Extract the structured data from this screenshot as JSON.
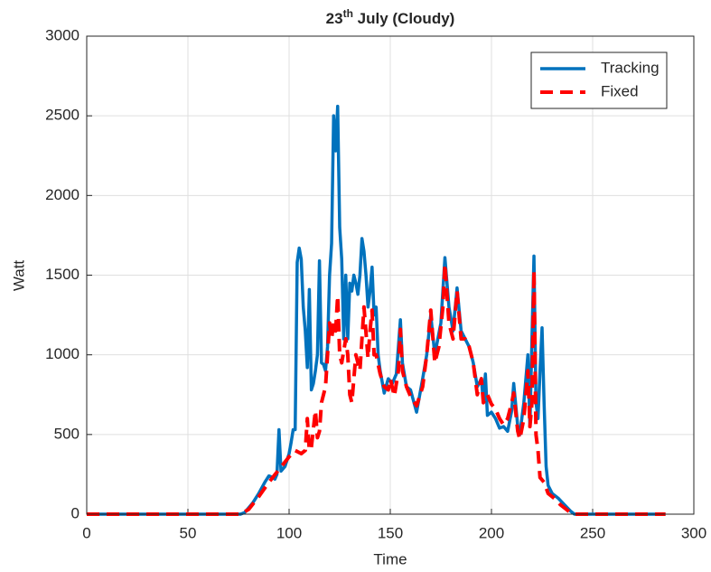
{
  "chart_data": {
    "type": "line",
    "title": {
      "main": "23",
      "sup": "th",
      "rest": " July (Cloudy)"
    },
    "xlabel": "Time",
    "ylabel": "Watt",
    "xlim": [
      0,
      300
    ],
    "ylim": [
      0,
      3000
    ],
    "xticks": [
      0,
      50,
      100,
      150,
      200,
      250,
      300
    ],
    "yticks": [
      0,
      500,
      1000,
      1500,
      2000,
      2500,
      3000
    ],
    "grid": true,
    "legend": "northeast",
    "series": [
      {
        "name": "Tracking",
        "color": "#0072bd",
        "style": "solid",
        "x": [
          0,
          76,
          78,
          80,
          82,
          85,
          88,
          90,
          92,
          93,
          94,
          95,
          96,
          98,
          100,
          101,
          102,
          103,
          104,
          105,
          106,
          107,
          108,
          109,
          110,
          111,
          112,
          113,
          114,
          115,
          116,
          117,
          118,
          119,
          120,
          121,
          122,
          123,
          124,
          125,
          126,
          127,
          128,
          129,
          130,
          131,
          132,
          133,
          134,
          135,
          136,
          137,
          138,
          139,
          140,
          141,
          142,
          143,
          144,
          145,
          147,
          149,
          151,
          153,
          155,
          156,
          158,
          160,
          163,
          166,
          168,
          170,
          172,
          175,
          177,
          179,
          181,
          183,
          185,
          187,
          189,
          191,
          193,
          195,
          196,
          197,
          198,
          200,
          202,
          204,
          206,
          208,
          210,
          211,
          213,
          214,
          216,
          218,
          219,
          220,
          221,
          222,
          223,
          224,
          225,
          226,
          227,
          228,
          230,
          233,
          236,
          239,
          241,
          286
        ],
        "values": [
          0,
          0,
          10,
          40,
          70,
          130,
          200,
          240,
          230,
          220,
          250,
          530,
          270,
          300,
          380,
          450,
          530,
          530,
          1580,
          1670,
          1600,
          1300,
          1150,
          920,
          1410,
          780,
          820,
          900,
          1000,
          1590,
          950,
          940,
          900,
          1050,
          1500,
          1700,
          2500,
          2280,
          2560,
          1800,
          1600,
          1100,
          1500,
          1100,
          1450,
          1400,
          1500,
          1450,
          1380,
          1500,
          1730,
          1650,
          1500,
          1300,
          1400,
          1550,
          1250,
          1300,
          1000,
          900,
          760,
          850,
          820,
          880,
          1220,
          950,
          800,
          780,
          640,
          850,
          1000,
          1250,
          1000,
          1200,
          1610,
          1300,
          1150,
          1420,
          1150,
          1100,
          1050,
          950,
          800,
          850,
          700,
          880,
          620,
          640,
          600,
          540,
          550,
          520,
          650,
          820,
          550,
          500,
          700,
          1000,
          550,
          1100,
          1620,
          700,
          600,
          900,
          1170,
          700,
          300,
          180,
          130,
          100,
          60,
          20,
          0,
          0
        ]
      },
      {
        "name": "Fixed",
        "color": "#ff0000",
        "style": "dashed",
        "x": [
          0,
          76,
          80,
          85,
          90,
          95,
          100,
          103,
          106,
          108,
          109,
          110,
          111,
          113,
          114,
          115,
          116,
          118,
          120,
          121,
          122,
          123,
          124,
          125,
          126,
          128,
          129,
          130,
          131,
          133,
          135,
          137,
          139,
          140,
          141,
          142,
          143,
          145,
          147,
          149,
          150,
          152,
          154,
          155,
          156,
          158,
          160,
          163,
          166,
          168,
          170,
          172,
          174,
          176,
          177,
          179,
          181,
          183,
          185,
          187,
          189,
          191,
          193,
          195,
          196,
          198,
          200,
          202,
          204,
          206,
          208,
          210,
          211,
          213,
          214,
          216,
          218,
          219,
          220,
          221,
          222,
          223,
          224,
          226,
          228,
          231,
          234,
          237,
          239,
          241,
          286
        ],
        "values": [
          0,
          0,
          30,
          110,
          200,
          280,
          360,
          400,
          380,
          400,
          600,
          400,
          420,
          650,
          480,
          520,
          700,
          800,
          1200,
          1100,
          1200,
          1150,
          1370,
          1000,
          950,
          1100,
          1000,
          750,
          700,
          1000,
          900,
          1300,
          980,
          1150,
          1280,
          1000,
          1000,
          880,
          800,
          780,
          850,
          740,
          900,
          1160,
          900,
          800,
          740,
          680,
          800,
          1000,
          1280,
          950,
          1050,
          1300,
          1570,
          1200,
          1100,
          1400,
          1100,
          1100,
          1050,
          950,
          750,
          850,
          700,
          750,
          690,
          660,
          600,
          560,
          600,
          700,
          760,
          520,
          470,
          600,
          900,
          550,
          700,
          1530,
          500,
          400,
          230,
          200,
          130,
          100,
          60,
          30,
          10,
          0,
          0
        ]
      }
    ]
  }
}
